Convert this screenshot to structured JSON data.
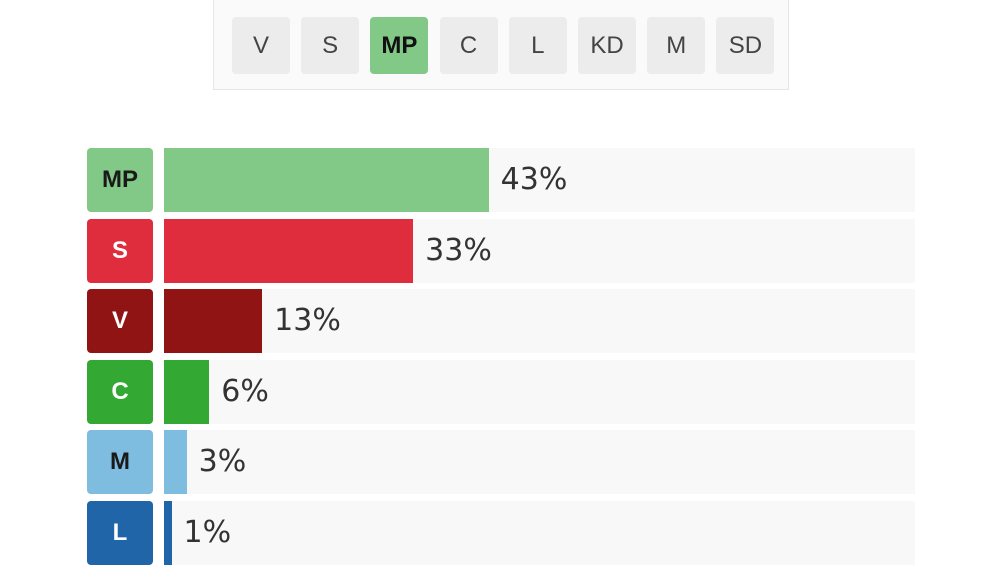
{
  "selector": {
    "tabs": [
      {
        "label": "V"
      },
      {
        "label": "S"
      },
      {
        "label": "MP",
        "active": true,
        "color": "#82c886"
      },
      {
        "label": "C"
      },
      {
        "label": "L"
      },
      {
        "label": "KD"
      },
      {
        "label": "M"
      },
      {
        "label": "SD"
      }
    ]
  },
  "chart_data": {
    "type": "bar",
    "orientation": "horizontal",
    "max": 100,
    "rows": [
      {
        "party": "MP",
        "value": 43,
        "label": "43%",
        "color": "#82c886",
        "text_color": "#1a1a1a"
      },
      {
        "party": "S",
        "value": 33,
        "label": "33%",
        "color": "#e02d3e",
        "text_color": "#ffffff"
      },
      {
        "party": "V",
        "value": 13,
        "label": "13%",
        "color": "#911414",
        "text_color": "#ffffff"
      },
      {
        "party": "C",
        "value": 6,
        "label": "6%",
        "color": "#33a832",
        "text_color": "#ffffff"
      },
      {
        "party": "M",
        "value": 3,
        "label": "3%",
        "color": "#7fbde0",
        "text_color": "#1a1a1a"
      },
      {
        "party": "L",
        "value": 1,
        "label": "1%",
        "color": "#1f65a8",
        "text_color": "#ffffff"
      }
    ]
  }
}
